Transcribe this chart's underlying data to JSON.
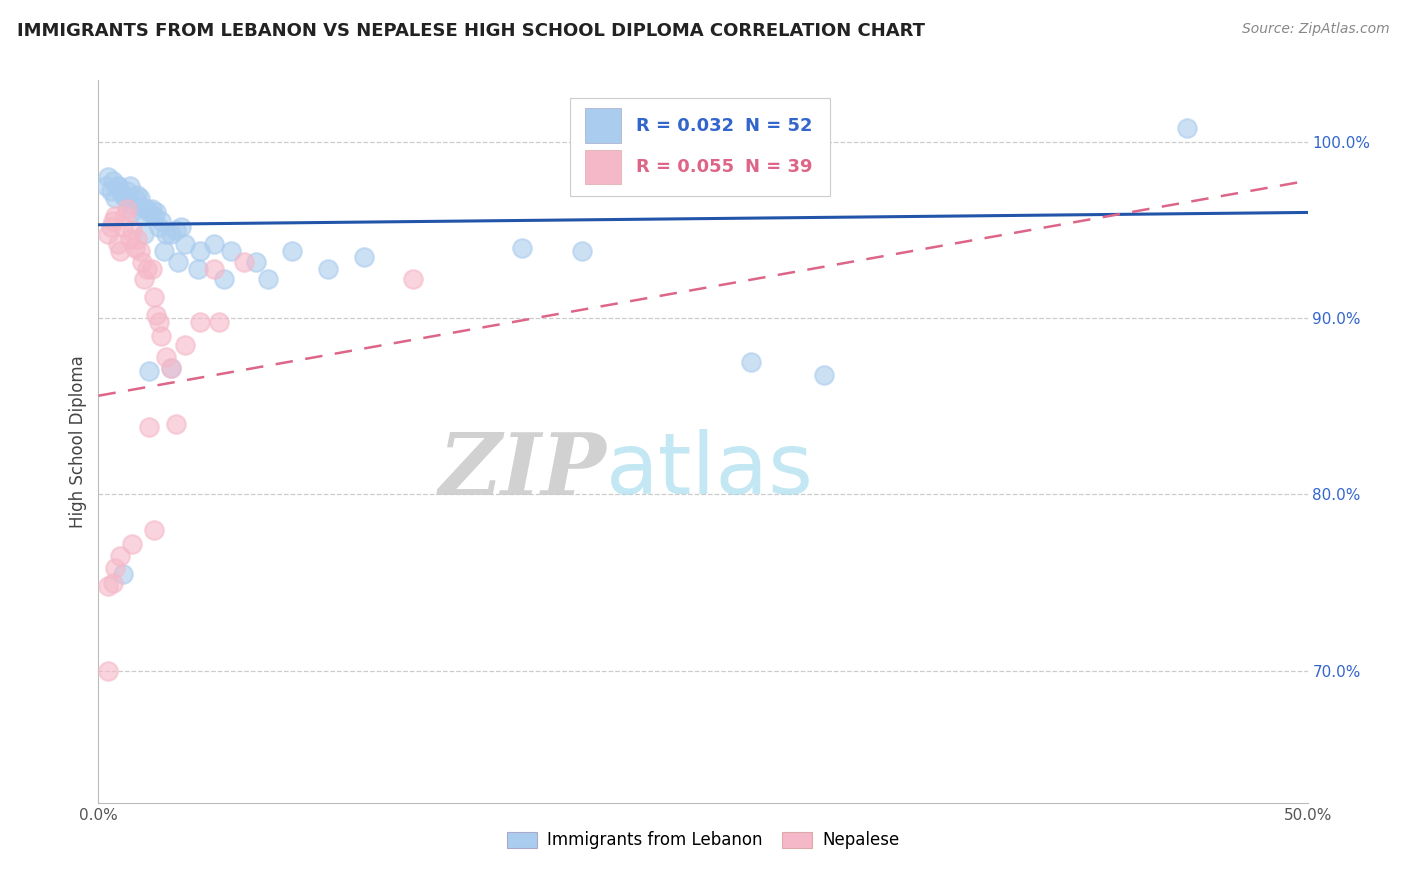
{
  "title": "IMMIGRANTS FROM LEBANON VS NEPALESE HIGH SCHOOL DIPLOMA CORRELATION CHART",
  "source": "Source: ZipAtlas.com",
  "ylabel": "High School Diploma",
  "xlim": [
    0.0,
    0.5
  ],
  "ylim": [
    0.625,
    1.035
  ],
  "xticks": [
    0.0,
    0.1,
    0.2,
    0.3,
    0.4,
    0.5
  ],
  "xticklabels": [
    "0.0%",
    "",
    "",
    "",
    "",
    "50.0%"
  ],
  "yticks_right": [
    0.7,
    0.8,
    0.9,
    1.0
  ],
  "ytick_right_labels": [
    "70.0%",
    "80.0%",
    "90.0%",
    "100.0%"
  ],
  "legend_blue_r": "0.032",
  "legend_blue_n": "52",
  "legend_pink_r": "0.055",
  "legend_pink_n": "39",
  "legend_label_blue": "Immigrants from Lebanon",
  "legend_label_pink": "Nepalese",
  "blue_color": "#aaccee",
  "pink_color": "#f5b8c8",
  "blue_line_color": "#2255aa",
  "pink_line_color": "#dd6688",
  "watermark_zip": "ZIP",
  "watermark_atlas": "atlas",
  "blue_scatter_x": [
    0.003,
    0.004,
    0.005,
    0.006,
    0.007,
    0.008,
    0.009,
    0.01,
    0.011,
    0.012,
    0.013,
    0.014,
    0.015,
    0.016,
    0.017,
    0.018,
    0.019,
    0.02,
    0.021,
    0.022,
    0.023,
    0.024,
    0.025,
    0.026,
    0.028,
    0.03,
    0.032,
    0.034,
    0.036,
    0.042,
    0.048,
    0.055,
    0.065,
    0.08,
    0.095,
    0.11,
    0.175,
    0.2,
    0.27,
    0.3,
    0.008,
    0.014,
    0.019,
    0.027,
    0.033,
    0.041,
    0.052,
    0.07,
    0.01,
    0.021,
    0.03,
    0.45
  ],
  "blue_scatter_y": [
    0.975,
    0.98,
    0.972,
    0.978,
    0.968,
    0.975,
    0.972,
    0.97,
    0.968,
    0.972,
    0.975,
    0.965,
    0.968,
    0.97,
    0.968,
    0.963,
    0.958,
    0.962,
    0.96,
    0.962,
    0.958,
    0.96,
    0.952,
    0.955,
    0.948,
    0.948,
    0.95,
    0.952,
    0.942,
    0.938,
    0.942,
    0.938,
    0.932,
    0.938,
    0.928,
    0.935,
    0.94,
    0.938,
    0.875,
    0.868,
    0.975,
    0.96,
    0.948,
    0.938,
    0.932,
    0.928,
    0.922,
    0.922,
    0.755,
    0.87,
    0.872,
    1.008
  ],
  "pink_scatter_x": [
    0.004,
    0.005,
    0.006,
    0.007,
    0.008,
    0.009,
    0.01,
    0.011,
    0.012,
    0.013,
    0.014,
    0.015,
    0.016,
    0.017,
    0.018,
    0.019,
    0.02,
    0.021,
    0.022,
    0.023,
    0.024,
    0.025,
    0.026,
    0.028,
    0.03,
    0.032,
    0.036,
    0.042,
    0.048,
    0.06,
    0.004,
    0.006,
    0.007,
    0.009,
    0.014,
    0.023,
    0.05,
    0.13,
    0.004
  ],
  "pink_scatter_y": [
    0.948,
    0.952,
    0.955,
    0.958,
    0.942,
    0.938,
    0.952,
    0.958,
    0.962,
    0.945,
    0.95,
    0.94,
    0.945,
    0.938,
    0.932,
    0.922,
    0.928,
    0.838,
    0.928,
    0.912,
    0.902,
    0.898,
    0.89,
    0.878,
    0.872,
    0.84,
    0.885,
    0.898,
    0.928,
    0.932,
    0.748,
    0.75,
    0.758,
    0.765,
    0.772,
    0.78,
    0.898,
    0.922,
    0.7
  ],
  "blue_trendline_x": [
    0.0,
    0.5
  ],
  "blue_trendline_y": [
    0.953,
    0.96
  ],
  "pink_trendline_x": [
    0.0,
    0.5
  ],
  "pink_trendline_y": [
    0.856,
    0.978
  ]
}
